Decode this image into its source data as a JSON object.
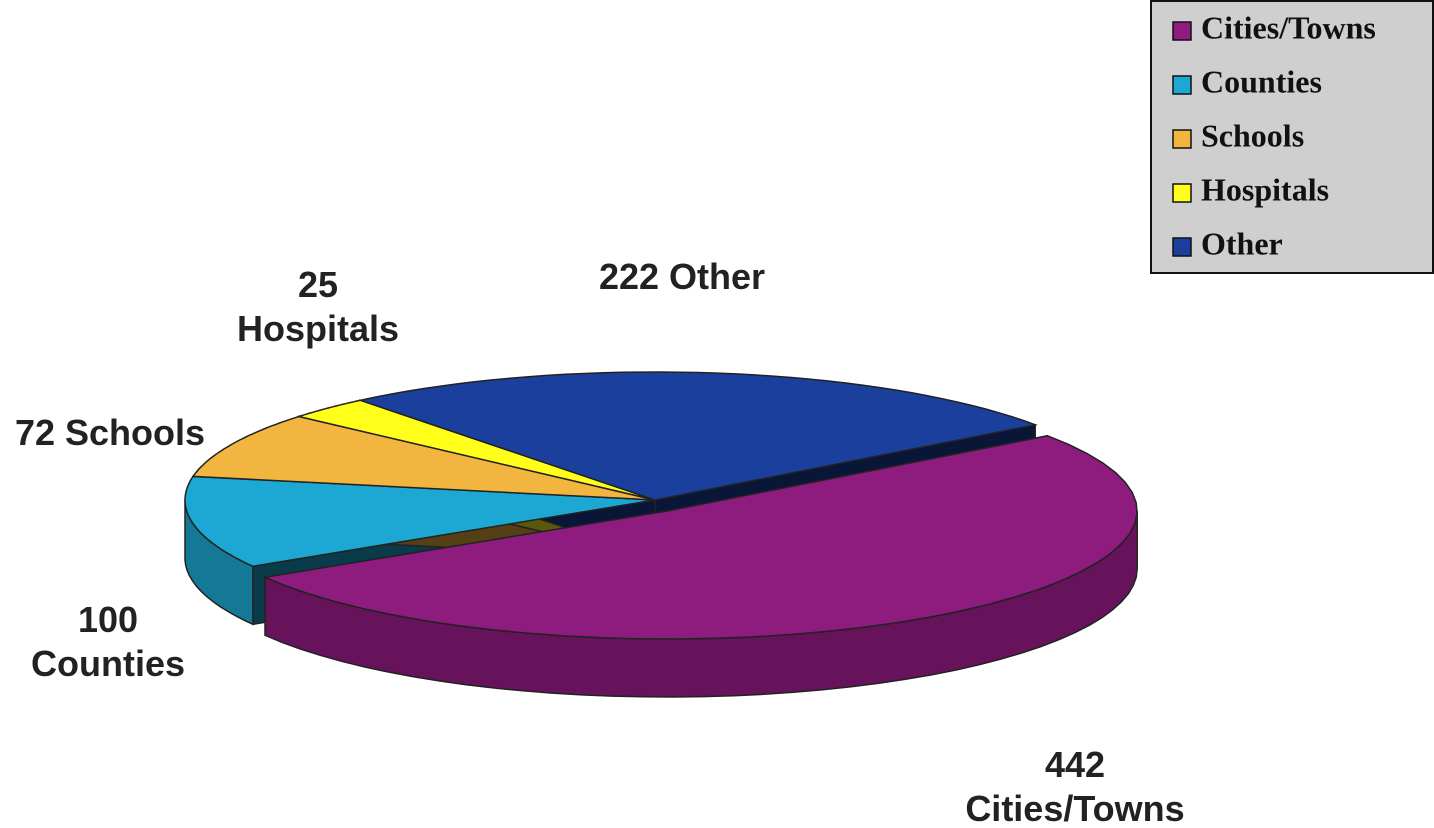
{
  "chart_data": {
    "type": "pie",
    "three_d": true,
    "categories": [
      "Cities/Towns",
      "Counties",
      "Schools",
      "Hospitals",
      "Other"
    ],
    "values": [
      442,
      100,
      72,
      25,
      222
    ],
    "colors": [
      "#8e1b7e",
      "#1ca8d2",
      "#f2b640",
      "#ffff1a",
      "#1b3f9c"
    ],
    "legend": "top-right"
  }
}
